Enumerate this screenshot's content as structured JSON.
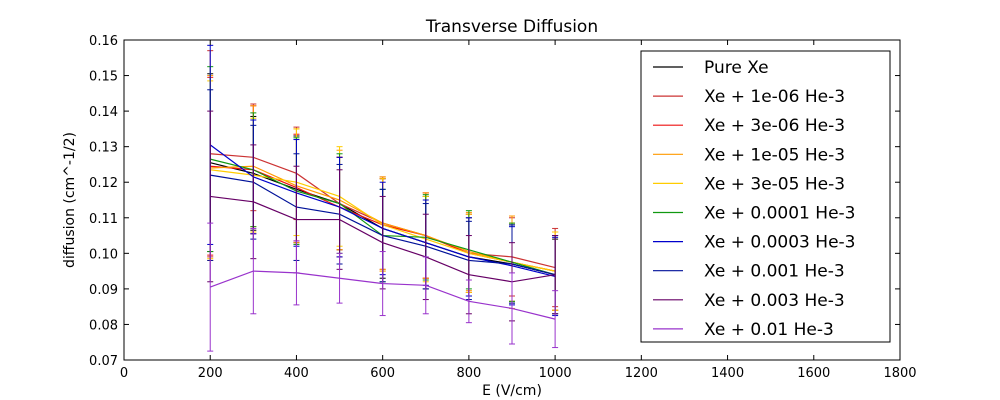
{
  "chart_data": {
    "type": "line",
    "title": "Transverse Diffusion",
    "xlabel": "E (V/cm)",
    "ylabel": "diffusion (cm^-1/2)",
    "xlim": [
      0,
      1800
    ],
    "ylim": [
      0.07,
      0.16
    ],
    "xticks": [
      0,
      200,
      400,
      600,
      800,
      1000,
      1200,
      1400,
      1600,
      1800
    ],
    "yticks": [
      0.07,
      0.08,
      0.09,
      0.1,
      0.11,
      0.12,
      0.13,
      0.14,
      0.15,
      0.16
    ],
    "xtick_labels": [
      "0",
      "200",
      "400",
      "600",
      "800",
      "1000",
      "1200",
      "1400",
      "1600",
      "1800"
    ],
    "ytick_labels": [
      "0.07",
      "0.08",
      "0.09",
      "0.10",
      "0.11",
      "0.12",
      "0.13",
      "0.14",
      "0.15",
      "0.16"
    ],
    "legend_position": "right",
    "grid": false,
    "x": [
      200,
      300,
      400,
      500,
      600,
      700,
      800,
      900,
      1000
    ],
    "series": [
      {
        "name": "Pure Xe",
        "color": "#000000",
        "values": [
          0.1255,
          0.1225,
          0.118,
          0.114,
          0.107,
          0.103,
          0.099,
          0.097,
          0.094
        ],
        "err": [
          0.025,
          0.016,
          0.015,
          0.013,
          0.014,
          0.013,
          0.011,
          0.011,
          0.01
        ]
      },
      {
        "name": "Xe + 1e-06 He-3",
        "color": "#cc3333",
        "values": [
          0.128,
          0.127,
          0.1225,
          0.114,
          0.1085,
          0.105,
          0.1,
          0.099,
          0.096
        ],
        "err": [
          0.029,
          0.015,
          0.013,
          0.013,
          0.013,
          0.012,
          0.011,
          0.011,
          0.011
        ]
      },
      {
        "name": "Xe + 3e-06 He-3",
        "color": "#ee1111",
        "values": [
          0.1245,
          0.1235,
          0.1185,
          0.113,
          0.108,
          0.105,
          0.1,
          0.0975,
          0.095
        ],
        "err": [
          0.025,
          0.018,
          0.015,
          0.014,
          0.013,
          0.012,
          0.011,
          0.011,
          0.011
        ]
      },
      {
        "name": "Xe + 1e-05 He-3",
        "color": "#ff9900",
        "values": [
          0.124,
          0.1245,
          0.119,
          0.115,
          0.1085,
          0.105,
          0.1005,
          0.0975,
          0.095
        ],
        "err": [
          0.026,
          0.017,
          0.016,
          0.014,
          0.013,
          0.012,
          0.011,
          0.013,
          0.011
        ]
      },
      {
        "name": "Xe + 3e-05 He-3",
        "color": "#ffcc00",
        "values": [
          0.1235,
          0.122,
          0.12,
          0.116,
          0.108,
          0.104,
          0.1,
          0.0975,
          0.095
        ],
        "err": [
          0.025,
          0.016,
          0.015,
          0.014,
          0.013,
          0.012,
          0.011,
          0.011,
          0.011
        ]
      },
      {
        "name": "Xe + 0.0001 He-3",
        "color": "#119911",
        "values": [
          0.1265,
          0.1235,
          0.1175,
          0.114,
          0.105,
          0.1045,
          0.101,
          0.0975,
          0.094
        ],
        "err": [
          0.026,
          0.016,
          0.015,
          0.014,
          0.013,
          0.012,
          0.011,
          0.011,
          0.011
        ]
      },
      {
        "name": "Xe + 0.0003 He-3",
        "color": "#0000cc",
        "values": [
          0.1305,
          0.1215,
          0.117,
          0.113,
          0.107,
          0.103,
          0.099,
          0.0965,
          0.0935
        ],
        "err": [
          0.028,
          0.016,
          0.015,
          0.014,
          0.013,
          0.012,
          0.011,
          0.011,
          0.011
        ]
      },
      {
        "name": "Xe + 0.001 He-3",
        "color": "#001199",
        "values": [
          0.122,
          0.12,
          0.113,
          0.111,
          0.105,
          0.102,
          0.098,
          0.097,
          0.094
        ],
        "err": [
          0.024,
          0.016,
          0.015,
          0.014,
          0.013,
          0.012,
          0.011,
          0.011,
          0.011
        ]
      },
      {
        "name": "Xe + 0.003 He-3",
        "color": "#660066",
        "values": [
          0.116,
          0.1145,
          0.1095,
          0.1095,
          0.103,
          0.099,
          0.094,
          0.092,
          0.094
        ],
        "err": [
          0.024,
          0.016,
          0.015,
          0.014,
          0.013,
          0.012,
          0.011,
          0.011,
          0.011
        ]
      },
      {
        "name": "Xe + 0.01 He-3",
        "color": "#9933cc",
        "values": [
          0.0905,
          0.095,
          0.0945,
          0.093,
          0.0915,
          0.091,
          0.0865,
          0.0845,
          0.0815
        ],
        "err": [
          0.018,
          0.012,
          0.009,
          0.007,
          0.009,
          0.008,
          0.006,
          0.01,
          0.008
        ]
      }
    ]
  }
}
